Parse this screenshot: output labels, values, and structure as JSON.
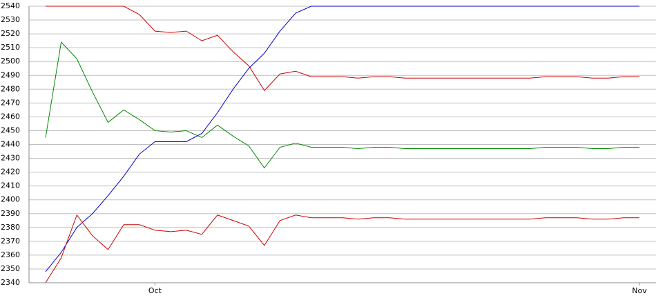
{
  "chart_data": {
    "type": "line",
    "categories": [
      null,
      null,
      null,
      null,
      null,
      null,
      null,
      "Oct",
      null,
      null,
      null,
      null,
      null,
      null,
      null,
      null,
      null,
      null,
      null,
      null,
      null,
      null,
      null,
      null,
      null,
      null,
      null,
      null,
      null,
      null,
      null,
      null,
      null,
      null,
      null,
      null,
      null,
      null,
      "Nov"
    ],
    "series": [
      {
        "color": "#cc0000",
        "values": [
          2540,
          2540,
          2540,
          2540,
          2540,
          2540,
          2534,
          2522,
          2521,
          2522,
          2515,
          2519,
          2507,
          2497,
          2479,
          2491,
          2493,
          2489,
          2489,
          2489,
          2488,
          2489,
          2489,
          2488,
          2488,
          2488,
          2488,
          2488,
          2488,
          2488,
          2488,
          2488,
          2489,
          2489,
          2489,
          2488,
          2488,
          2489,
          2489
        ]
      },
      {
        "color": "#0000cc",
        "values": [
          2348,
          2362,
          2380,
          2390,
          2403,
          2417,
          2433,
          2442,
          2442,
          2442,
          2448,
          2463,
          2480,
          2495,
          2506,
          2522,
          2535,
          2540,
          2540,
          2540,
          2540,
          2540,
          2540,
          2540,
          2540,
          2540,
          2540,
          2540,
          2540,
          2540,
          2540,
          2540,
          2540,
          2540,
          2540,
          2540,
          2540,
          2540,
          2540
        ]
      },
      {
        "color": "#008800",
        "values": [
          2445,
          2514,
          2502,
          2478,
          2456,
          2465,
          2458,
          2450,
          2449,
          2450,
          2445,
          2454,
          2446,
          2439,
          2423,
          2438,
          2441,
          2438,
          2438,
          2438,
          2437,
          2438,
          2438,
          2437,
          2437,
          2437,
          2437,
          2437,
          2437,
          2437,
          2437,
          2437,
          2438,
          2438,
          2438,
          2437,
          2437,
          2438,
          2438
        ]
      },
      {
        "color": "#cc0000",
        "values": [
          2340,
          2358,
          2389,
          2374,
          2364,
          2382,
          2382,
          2378,
          2377,
          2378,
          2375,
          2389,
          2385,
          2381,
          2367,
          2385,
          2389,
          2387,
          2387,
          2387,
          2386,
          2387,
          2387,
          2386,
          2386,
          2386,
          2386,
          2386,
          2386,
          2386,
          2386,
          2386,
          2387,
          2387,
          2387,
          2386,
          2386,
          2387,
          2387
        ]
      }
    ],
    "ylim": [
      2340,
      2540
    ],
    "yticks": [
      2340,
      2350,
      2360,
      2370,
      2380,
      2390,
      2400,
      2410,
      2420,
      2430,
      2440,
      2450,
      2460,
      2470,
      2480,
      2490,
      2500,
      2510,
      2520,
      2530,
      2540
    ],
    "grid": true
  }
}
